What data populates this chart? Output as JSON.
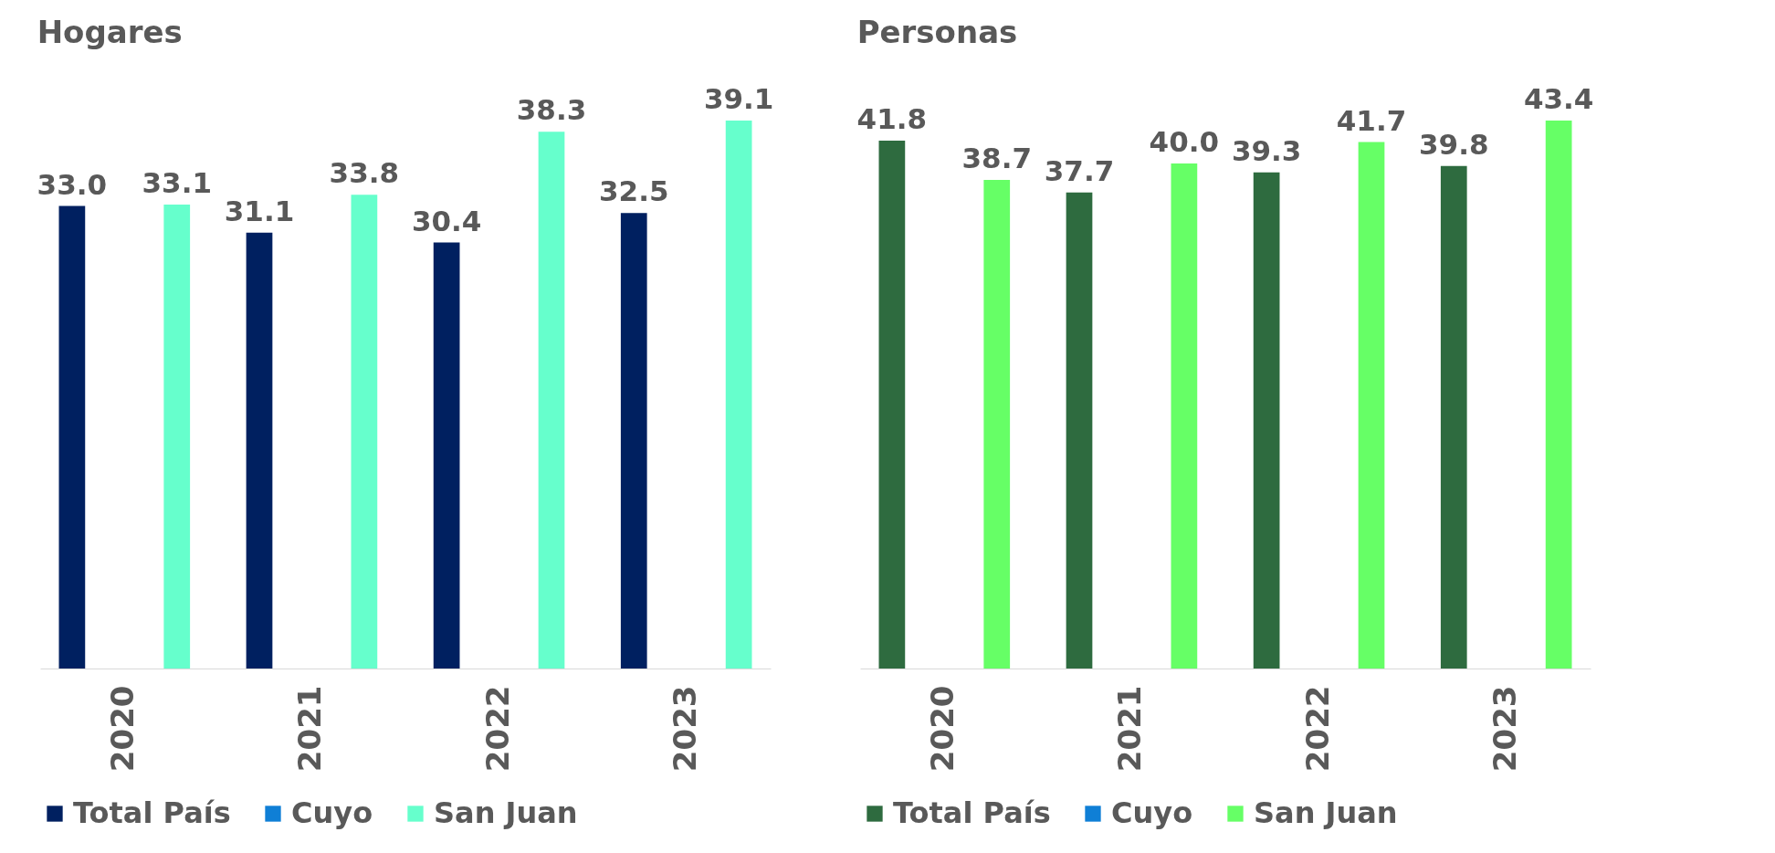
{
  "chart_data": [
    {
      "type": "bar",
      "title": "Hogares",
      "categories": [
        "2020",
        "2021",
        "2022",
        "2023"
      ],
      "series": [
        {
          "name": "Total País",
          "color": "#002060",
          "values": [
            33.0,
            31.1,
            30.4,
            32.5
          ],
          "value_labels": [
            "33.0",
            "31.1",
            "30.4",
            "32.5"
          ]
        },
        {
          "name": "Cuyo",
          "color": "#0f7fd6",
          "values": [
            null,
            null,
            null,
            null
          ],
          "value_labels": [
            null,
            null,
            null,
            null
          ]
        },
        {
          "name": "San Juan",
          "color": "#66ffcc",
          "values": [
            33.1,
            33.8,
            38.3,
            39.1
          ],
          "value_labels": [
            "33.1",
            "33.8",
            "38.3",
            "39.1"
          ]
        }
      ],
      "legend": "bottom"
    },
    {
      "type": "bar",
      "title": "Personas",
      "categories": [
        "2020",
        "2021",
        "2022",
        "2023"
      ],
      "series": [
        {
          "name": "Total País",
          "color": "#2e6b3f",
          "values": [
            41.8,
            37.7,
            39.3,
            39.8
          ],
          "value_labels": [
            "41.8",
            "37.7",
            "39.3",
            "39.8"
          ]
        },
        {
          "name": "Cuyo",
          "color": "#0f7fd6",
          "values": [
            null,
            null,
            null,
            null
          ],
          "value_labels": [
            null,
            null,
            null,
            null
          ]
        },
        {
          "name": "San Juan",
          "color": "#66ff66",
          "values": [
            38.7,
            40.0,
            41.7,
            43.4
          ],
          "value_labels": [
            "38.7",
            "40.0",
            "41.7",
            "43.4"
          ]
        }
      ],
      "legend": "bottom"
    }
  ]
}
